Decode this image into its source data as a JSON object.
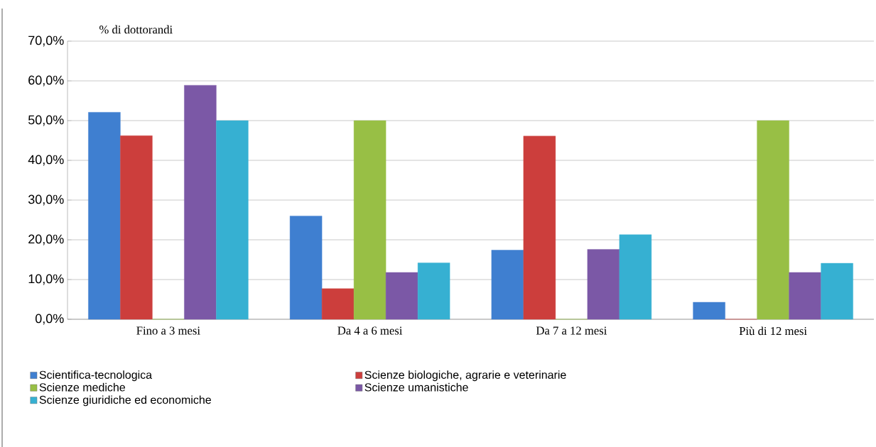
{
  "chart_data": {
    "type": "bar",
    "ylabel": "% di dottorandi",
    "categories": [
      "Fino a 3 mesi",
      "Da 4 a 6 mesi",
      "Da 7 a 12 mesi",
      "Più di 12 mesi"
    ],
    "series": [
      {
        "name": "Scientifica-tecnologica",
        "color": "#3f7fd0",
        "values": [
          52.1,
          26.0,
          17.4,
          4.3
        ]
      },
      {
        "name": "Scienze biologiche, agrarie e veterinarie",
        "color": "#cc3e3c",
        "values": [
          46.2,
          7.7,
          46.1,
          0
        ]
      },
      {
        "name": "Scienze mediche",
        "color": "#98bf45",
        "values": [
          0,
          50.0,
          0,
          50.0
        ]
      },
      {
        "name": "Scienze umanistiche",
        "color": "#7b58a6",
        "values": [
          58.9,
          11.8,
          17.6,
          11.8
        ]
      },
      {
        "name": "Scienze giuridiche ed economiche",
        "color": "#36b0d2",
        "values": [
          50.0,
          14.2,
          21.3,
          14.1
        ]
      }
    ],
    "ylim": [
      0,
      70
    ],
    "yticks": [
      {
        "value": 0,
        "label": "0,0%"
      },
      {
        "value": 10,
        "label": "10,0%"
      },
      {
        "value": 20,
        "label": "20,0%"
      },
      {
        "value": 30,
        "label": "30,0%"
      },
      {
        "value": 40,
        "label": "40,0%"
      },
      {
        "value": 50,
        "label": "50,0%"
      },
      {
        "value": 60,
        "label": "60,0%"
      },
      {
        "value": 70,
        "label": "70,0%"
      }
    ],
    "grid": "y",
    "legend": "bottom"
  }
}
